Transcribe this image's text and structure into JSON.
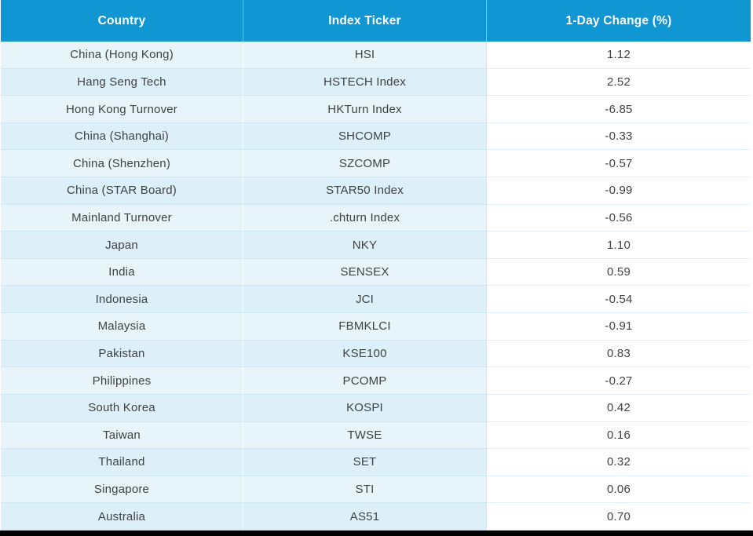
{
  "table": {
    "columns": [
      "Country",
      "Index Ticker",
      "1-Day Change (%)"
    ],
    "rows": [
      [
        "China (Hong Kong)",
        "HSI",
        "1.12"
      ],
      [
        "Hang Seng Tech",
        "HSTECH Index",
        "2.52"
      ],
      [
        "Hong Kong Turnover",
        "HKTurn Index",
        "-6.85"
      ],
      [
        "China (Shanghai)",
        "SHCOMP",
        "-0.33"
      ],
      [
        "China (Shenzhen)",
        "SZCOMP",
        "-0.57"
      ],
      [
        "China (STAR Board)",
        "STAR50 Index",
        "-0.99"
      ],
      [
        "Mainland Turnover",
        ".chturn Index",
        "-0.56"
      ],
      [
        "Japan",
        "NKY",
        "1.10"
      ],
      [
        "India",
        "SENSEX",
        "0.59"
      ],
      [
        "Indonesia",
        "JCI",
        "-0.54"
      ],
      [
        "Malaysia",
        "FBMKLCI",
        "-0.91"
      ],
      [
        "Pakistan",
        "KSE100",
        "0.83"
      ],
      [
        "Philippines",
        "PCOMP",
        "-0.27"
      ],
      [
        "South Korea",
        "KOSPI",
        "0.42"
      ],
      [
        "Taiwan",
        "TWSE",
        "0.16"
      ],
      [
        "Thailand",
        "SET",
        "0.32"
      ],
      [
        "Singapore",
        "STI",
        "0.06"
      ],
      [
        "Australia",
        "AS51",
        "0.70"
      ]
    ],
    "colors": {
      "header_bg": "#0f96d3",
      "header_text": "#ffffff",
      "row_light_bg": "#e7f4fa",
      "row_dark_bg": "#ddeff8",
      "value_cell_bg": "#ffffff",
      "body_text": "#3f4245",
      "bottom_bar": "#000000"
    }
  }
}
